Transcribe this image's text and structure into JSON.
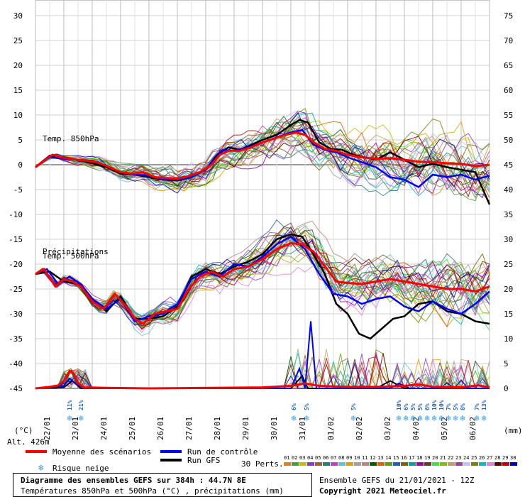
{
  "chart_data": {
    "type": "line",
    "title": "Diagramme des ensembles GEFS sur 384h : 44.7N 8E",
    "subtitle": "Températures 850hPa et 500hPa (°C) , précipitations (mm)",
    "ensemble_title": "Ensemble GEFS du 21/01/2021 - 12Z",
    "copyright": "Copyright 2021 Meteociel.fr",
    "altitude": "Alt. 426m",
    "left_unit": "(°C)",
    "right_unit": "(mm)",
    "left_axis": {
      "ticks": [
        "30",
        "25",
        "20",
        "15",
        "10",
        "5",
        "0",
        "-5",
        "-10",
        "-15",
        "-20",
        "-25",
        "-30",
        "-35",
        "-40",
        "-45"
      ],
      "ylim": [
        -45,
        30
      ]
    },
    "right_axis": {
      "ticks": [
        "75",
        "70",
        "65",
        "60",
        "55",
        "50",
        "45",
        "40",
        "35",
        "30",
        "25",
        "20",
        "15",
        "10",
        "5",
        "0"
      ],
      "ylim": [
        0,
        75
      ]
    },
    "x_labels": [
      "22/01",
      "23/01",
      "24/01",
      "25/01",
      "26/01",
      "27/01",
      "28/01",
      "29/01",
      "30/01",
      "31/01",
      "01/02",
      "02/02",
      "03/02",
      "04/02",
      "05/02",
      "06/02"
    ],
    "panel_labels": {
      "t850": "Temp. 850hPa",
      "t500": "Temp. 500hPa",
      "precip": "Précipitations"
    },
    "legend": {
      "mean": "Moyenne des scénarios",
      "control": "Run de contrôle",
      "gfs": "Run GFS",
      "snow": "Risque neige",
      "perts": "30 Perts."
    },
    "member_labels": [
      "01",
      "02",
      "03",
      "04",
      "05",
      "06",
      "07",
      "08",
      "09",
      "10",
      "11",
      "12",
      "13",
      "14",
      "15",
      "16",
      "17",
      "18",
      "19",
      "20",
      "21",
      "22",
      "23",
      "24",
      "25",
      "26",
      "27",
      "28",
      "29",
      "30"
    ],
    "member_colors": [
      "#e08020",
      "#40a040",
      "#c0c000",
      "#8040c0",
      "#a06030",
      "#208080",
      "#c040c0",
      "#60c0e0",
      "#e0a000",
      "#a0a0a0",
      "#c08080",
      "#006000",
      "#e06000",
      "#60a000",
      "#2060c0",
      "#806000",
      "#00a0a0",
      "#a000a0",
      "#604020",
      "#40e040",
      "#80c000",
      "#c0a060",
      "#a040a0",
      "#c0c0ff",
      "#808000",
      "#00c0c0",
      "#e080e0",
      "#600000",
      "#c00000",
      "#0000c0"
    ],
    "series_colors": {
      "mean": "#ff0000",
      "control": "#0000ff",
      "gfs": "#000000"
    },
    "snow_risk": [
      {
        "day": 1.2,
        "label": "11%"
      },
      {
        "day": 1.6,
        "label": "21%"
      },
      {
        "day": 9.1,
        "label": "6%"
      },
      {
        "day": 9.55,
        "label": "5%"
      },
      {
        "day": 11.2,
        "label": "5%"
      },
      {
        "day": 12.8,
        "label": "10%"
      },
      {
        "day": 13.05,
        "label": "6%"
      },
      {
        "day": 13.3,
        "label": "5%"
      },
      {
        "day": 13.55,
        "label": "5%"
      },
      {
        "day": 13.8,
        "label": "6%"
      },
      {
        "day": 14.05,
        "label": "10%"
      },
      {
        "day": 14.3,
        "label": "10%"
      },
      {
        "day": 14.55,
        "label": "7%"
      },
      {
        "day": 14.8,
        "label": "5%"
      },
      {
        "day": 15.05,
        "label": "8%"
      },
      {
        "day": 15.55,
        "label": "7%"
      },
      {
        "day": 15.8,
        "label": "13%"
      }
    ],
    "t850": {
      "mean": [
        [
          0.0,
          -0.5
        ],
        [
          0.3,
          0.8
        ],
        [
          0.6,
          2.0
        ],
        [
          0.9,
          1.5
        ],
        [
          1.2,
          1.2
        ],
        [
          1.5,
          1.0
        ],
        [
          1.8,
          0.8
        ],
        [
          2.2,
          0.5
        ],
        [
          2.6,
          -0.5
        ],
        [
          3.0,
          -1.5
        ],
        [
          3.4,
          -1.8
        ],
        [
          3.8,
          -1.5
        ],
        [
          4.2,
          -2.5
        ],
        [
          4.6,
          -2.7
        ],
        [
          5.0,
          -2.8
        ],
        [
          5.4,
          -2.3
        ],
        [
          5.8,
          -1.5
        ],
        [
          6.2,
          0.0
        ],
        [
          6.5,
          2.0
        ],
        [
          6.8,
          2.8
        ],
        [
          7.2,
          2.8
        ],
        [
          7.6,
          3.5
        ],
        [
          8.0,
          4.5
        ],
        [
          8.4,
          5.2
        ],
        [
          8.8,
          6.0
        ],
        [
          9.2,
          6.5
        ],
        [
          9.5,
          6.0
        ],
        [
          9.8,
          4.5
        ],
        [
          10.2,
          3.2
        ],
        [
          10.6,
          2.8
        ],
        [
          11.0,
          2.0
        ],
        [
          11.5,
          1.5
        ],
        [
          12.0,
          1.2
        ],
        [
          12.5,
          1.3
        ],
        [
          13.0,
          1.0
        ],
        [
          13.5,
          0.6
        ],
        [
          14.0,
          0.5
        ],
        [
          14.5,
          0.3
        ],
        [
          15.0,
          0.2
        ],
        [
          15.5,
          -0.3
        ],
        [
          16.0,
          0.0
        ]
      ],
      "control": [
        [
          0.0,
          -0.5
        ],
        [
          0.5,
          1.5
        ],
        [
          1.0,
          1.2
        ],
        [
          1.5,
          1.0
        ],
        [
          2.0,
          0.8
        ],
        [
          2.5,
          -0.2
        ],
        [
          3.0,
          -1.5
        ],
        [
          3.5,
          -2.0
        ],
        [
          4.0,
          -2.2
        ],
        [
          4.5,
          -3.0
        ],
        [
          5.0,
          -3.0
        ],
        [
          5.5,
          -2.5
        ],
        [
          6.0,
          -1.0
        ],
        [
          6.3,
          1.0
        ],
        [
          6.6,
          3.0
        ],
        [
          7.0,
          2.8
        ],
        [
          7.5,
          3.5
        ],
        [
          8.0,
          4.5
        ],
        [
          8.5,
          5.5
        ],
        [
          9.0,
          6.5
        ],
        [
          9.4,
          7.0
        ],
        [
          9.8,
          4.0
        ],
        [
          10.2,
          3.0
        ],
        [
          10.6,
          2.5
        ],
        [
          11.0,
          1.5
        ],
        [
          11.5,
          0.5
        ],
        [
          12.0,
          -0.5
        ],
        [
          12.5,
          -2.5
        ],
        [
          13.0,
          -3.0
        ],
        [
          13.5,
          -4.5
        ],
        [
          14.0,
          -2.0
        ],
        [
          14.5,
          -2.5
        ],
        [
          15.0,
          -2.0
        ],
        [
          15.5,
          -3.0
        ],
        [
          16.0,
          -2.2
        ]
      ],
      "gfs": [
        [
          0.0,
          -0.5
        ],
        [
          0.5,
          1.8
        ],
        [
          1.0,
          1.5
        ],
        [
          1.5,
          1.0
        ],
        [
          2.0,
          0.3
        ],
        [
          2.5,
          -0.5
        ],
        [
          3.0,
          -1.8
        ],
        [
          3.5,
          -2.0
        ],
        [
          4.0,
          -2.5
        ],
        [
          4.5,
          -3.0
        ],
        [
          5.0,
          -3.2
        ],
        [
          5.5,
          -2.5
        ],
        [
          6.0,
          -1.0
        ],
        [
          6.4,
          2.0
        ],
        [
          6.8,
          3.5
        ],
        [
          7.2,
          3.0
        ],
        [
          7.6,
          4.0
        ],
        [
          8.0,
          5.0
        ],
        [
          8.5,
          6.0
        ],
        [
          9.0,
          8.0
        ],
        [
          9.3,
          9.0
        ],
        [
          9.6,
          8.5
        ],
        [
          10.0,
          4.5
        ],
        [
          10.4,
          3.2
        ],
        [
          10.8,
          3.0
        ],
        [
          11.2,
          2.0
        ],
        [
          11.6,
          1.5
        ],
        [
          12.0,
          1.0
        ],
        [
          12.5,
          2.5
        ],
        [
          13.0,
          1.0
        ],
        [
          13.5,
          -0.5
        ],
        [
          14.0,
          0.2
        ],
        [
          14.5,
          -0.5
        ],
        [
          15.0,
          -1.0
        ],
        [
          15.5,
          -1.5
        ],
        [
          16.0,
          -8.0
        ]
      ]
    },
    "t500": {
      "mean": [
        [
          0.0,
          -22.0
        ],
        [
          0.3,
          -21.0
        ],
        [
          0.7,
          -24.5
        ],
        [
          1.0,
          -23.0
        ],
        [
          1.3,
          -23.5
        ],
        [
          1.6,
          -24.5
        ],
        [
          2.0,
          -27.5
        ],
        [
          2.4,
          -29.0
        ],
        [
          2.8,
          -26.0
        ],
        [
          3.2,
          -28.5
        ],
        [
          3.5,
          -31.0
        ],
        [
          3.8,
          -32.0
        ],
        [
          4.2,
          -30.0
        ],
        [
          4.6,
          -29.5
        ],
        [
          5.0,
          -29.0
        ],
        [
          5.4,
          -25.0
        ],
        [
          5.8,
          -22.5
        ],
        [
          6.2,
          -21.5
        ],
        [
          6.6,
          -22.5
        ],
        [
          7.0,
          -21.0
        ],
        [
          7.5,
          -20.5
        ],
        [
          8.0,
          -19.0
        ],
        [
          8.5,
          -17.0
        ],
        [
          9.0,
          -15.8
        ],
        [
          9.4,
          -16.0
        ],
        [
          9.8,
          -17.5
        ],
        [
          10.2,
          -20.5
        ],
        [
          10.6,
          -23.5
        ],
        [
          11.0,
          -23.8
        ],
        [
          11.5,
          -24.0
        ],
        [
          12.0,
          -23.5
        ],
        [
          12.5,
          -23.0
        ],
        [
          13.0,
          -23.5
        ],
        [
          13.5,
          -24.0
        ],
        [
          14.0,
          -24.5
        ],
        [
          14.5,
          -25.0
        ],
        [
          15.0,
          -25.0
        ],
        [
          15.5,
          -25.5
        ],
        [
          16.0,
          -24.5
        ]
      ],
      "control": [
        [
          0.0,
          -22.0
        ],
        [
          0.4,
          -21.0
        ],
        [
          0.8,
          -24.0
        ],
        [
          1.2,
          -22.5
        ],
        [
          1.6,
          -24.0
        ],
        [
          2.0,
          -27.0
        ],
        [
          2.5,
          -29.0
        ],
        [
          3.0,
          -27.0
        ],
        [
          3.5,
          -31.5
        ],
        [
          4.0,
          -30.5
        ],
        [
          4.5,
          -30.0
        ],
        [
          5.0,
          -28.0
        ],
        [
          5.5,
          -23.0
        ],
        [
          6.0,
          -21.5
        ],
        [
          6.5,
          -22.5
        ],
        [
          7.0,
          -20.0
        ],
        [
          7.5,
          -20.5
        ],
        [
          8.0,
          -18.5
        ],
        [
          8.5,
          -16.0
        ],
        [
          9.0,
          -14.5
        ],
        [
          9.5,
          -17.0
        ],
        [
          10.0,
          -22.0
        ],
        [
          10.5,
          -26.0
        ],
        [
          11.0,
          -26.5
        ],
        [
          11.5,
          -28.0
        ],
        [
          12.0,
          -27.0
        ],
        [
          12.5,
          -26.5
        ],
        [
          13.0,
          -28.5
        ],
        [
          13.5,
          -29.5
        ],
        [
          14.0,
          -27.5
        ],
        [
          14.5,
          -29.0
        ],
        [
          15.0,
          -30.0
        ],
        [
          15.5,
          -28.0
        ],
        [
          16.0,
          -25.5
        ]
      ],
      "gfs": [
        [
          0.0,
          -22.0
        ],
        [
          0.5,
          -21.5
        ],
        [
          1.0,
          -23.5
        ],
        [
          1.5,
          -24.0
        ],
        [
          2.0,
          -27.0
        ],
        [
          2.5,
          -29.5
        ],
        [
          3.0,
          -26.5
        ],
        [
          3.5,
          -31.0
        ],
        [
          4.0,
          -31.0
        ],
        [
          4.5,
          -30.5
        ],
        [
          5.0,
          -28.5
        ],
        [
          5.5,
          -22.5
        ],
        [
          6.0,
          -21.0
        ],
        [
          6.5,
          -22.0
        ],
        [
          7.0,
          -20.5
        ],
        [
          7.5,
          -19.5
        ],
        [
          8.0,
          -18.0
        ],
        [
          8.5,
          -15.0
        ],
        [
          9.0,
          -14.0
        ],
        [
          9.4,
          -14.5
        ],
        [
          9.8,
          -18.0
        ],
        [
          10.2,
          -22.0
        ],
        [
          10.6,
          -28.0
        ],
        [
          11.0,
          -30.0
        ],
        [
          11.4,
          -34.0
        ],
        [
          11.8,
          -35.0
        ],
        [
          12.2,
          -33.0
        ],
        [
          12.6,
          -31.0
        ],
        [
          13.0,
          -30.5
        ],
        [
          13.5,
          -28.0
        ],
        [
          14.0,
          -27.5
        ],
        [
          14.5,
          -29.5
        ],
        [
          15.0,
          -30.0
        ],
        [
          15.5,
          -31.5
        ],
        [
          16.0,
          -32.0
        ]
      ]
    },
    "precip": {
      "mean": [
        [
          0.0,
          0.0
        ],
        [
          0.5,
          0.3
        ],
        [
          0.8,
          0.6
        ],
        [
          1.0,
          1.5
        ],
        [
          1.2,
          3.5
        ],
        [
          1.35,
          3.0
        ],
        [
          1.5,
          1.0
        ],
        [
          1.7,
          0.2
        ],
        [
          2.5,
          0.1
        ],
        [
          4.0,
          0.0
        ],
        [
          8.0,
          0.2
        ],
        [
          9.0,
          0.5
        ],
        [
          9.5,
          1.0
        ],
        [
          10.0,
          0.5
        ],
        [
          11.0,
          0.3
        ],
        [
          12.0,
          0.3
        ],
        [
          13.0,
          0.5
        ],
        [
          13.5,
          0.8
        ],
        [
          14.0,
          0.3
        ],
        [
          15.0,
          0.2
        ],
        [
          15.6,
          0.6
        ],
        [
          16.0,
          0.2
        ]
      ],
      "control": [
        [
          0.0,
          0.0
        ],
        [
          1.0,
          0.5
        ],
        [
          1.2,
          2.0
        ],
        [
          1.4,
          1.0
        ],
        [
          1.7,
          0.0
        ],
        [
          9.0,
          0.0
        ],
        [
          9.3,
          4.0
        ],
        [
          9.5,
          0.0
        ],
        [
          9.7,
          13.5
        ],
        [
          9.9,
          0.0
        ],
        [
          12.5,
          0.0
        ],
        [
          12.8,
          1.0
        ],
        [
          13.2,
          0.0
        ],
        [
          16.0,
          0.0
        ]
      ],
      "gfs": [
        [
          0.0,
          0.0
        ],
        [
          1.0,
          0.2
        ],
        [
          1.3,
          1.5
        ],
        [
          1.6,
          0.0
        ],
        [
          9.0,
          0.0
        ],
        [
          9.4,
          2.5
        ],
        [
          9.6,
          0.0
        ],
        [
          12.0,
          0.0
        ],
        [
          12.5,
          1.5
        ],
        [
          13.0,
          0.0
        ],
        [
          16.0,
          0.0
        ]
      ]
    }
  }
}
